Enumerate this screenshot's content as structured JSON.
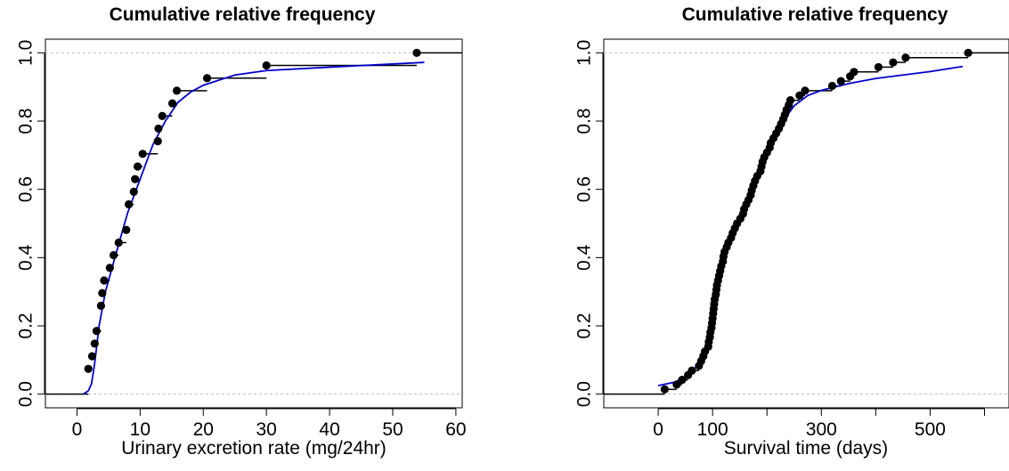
{
  "chart_data": [
    {
      "type": "line",
      "subtype": "empirical CDF (step) with fitted CDF overlay",
      "title": "Cumulative relative frequency",
      "xlabel": "Urinary excretion rate (mg/24hr)",
      "ylabel": "",
      "xlim": [
        -5,
        61
      ],
      "ylim": [
        -0.04,
        1.04
      ],
      "x_ticks": [
        0,
        10,
        20,
        30,
        40,
        50,
        60
      ],
      "y_ticks": [
        0.0,
        0.2,
        0.4,
        0.6,
        0.8,
        1.0
      ],
      "y_tick_labels": [
        "0.0",
        "0.2",
        "0.4",
        "0.6",
        "0.8",
        "1.0"
      ],
      "reference_lines": [
        0,
        1
      ],
      "empirical_points": [
        {
          "x": 1.8,
          "y": 0.074
        },
        {
          "x": 2.4,
          "y": 0.111
        },
        {
          "x": 2.8,
          "y": 0.148
        },
        {
          "x": 3.1,
          "y": 0.185
        },
        {
          "x": 3.8,
          "y": 0.259
        },
        {
          "x": 4.0,
          "y": 0.296
        },
        {
          "x": 4.3,
          "y": 0.333
        },
        {
          "x": 5.2,
          "y": 0.37
        },
        {
          "x": 5.8,
          "y": 0.407
        },
        {
          "x": 6.6,
          "y": 0.444
        },
        {
          "x": 7.8,
          "y": 0.481
        },
        {
          "x": 8.2,
          "y": 0.556
        },
        {
          "x": 9.0,
          "y": 0.593
        },
        {
          "x": 9.2,
          "y": 0.63
        },
        {
          "x": 9.6,
          "y": 0.667
        },
        {
          "x": 10.4,
          "y": 0.704
        },
        {
          "x": 12.8,
          "y": 0.741
        },
        {
          "x": 12.9,
          "y": 0.778
        },
        {
          "x": 13.5,
          "y": 0.815
        },
        {
          "x": 15.1,
          "y": 0.852
        },
        {
          "x": 15.8,
          "y": 0.889
        },
        {
          "x": 20.6,
          "y": 0.926
        },
        {
          "x": 30.0,
          "y": 0.963
        },
        {
          "x": 53.8,
          "y": 1.0
        }
      ],
      "fit_curve": {
        "color": "#0000cc",
        "points": [
          {
            "x": 1.0,
            "y": 0.0
          },
          {
            "x": 1.8,
            "y": 0.01
          },
          {
            "x": 2.3,
            "y": 0.03
          },
          {
            "x": 2.8,
            "y": 0.09
          },
          {
            "x": 3.5,
            "y": 0.2
          },
          {
            "x": 4.5,
            "y": 0.3
          },
          {
            "x": 6.0,
            "y": 0.4
          },
          {
            "x": 8.0,
            "y": 0.53
          },
          {
            "x": 10.0,
            "y": 0.63
          },
          {
            "x": 12.0,
            "y": 0.73
          },
          {
            "x": 14.0,
            "y": 0.8
          },
          {
            "x": 16.0,
            "y": 0.855
          },
          {
            "x": 18.0,
            "y": 0.885
          },
          {
            "x": 20.0,
            "y": 0.905
          },
          {
            "x": 25.0,
            "y": 0.935
          },
          {
            "x": 30.0,
            "y": 0.948
          },
          {
            "x": 40.0,
            "y": 0.958
          },
          {
            "x": 55.0,
            "y": 0.972
          }
        ]
      }
    },
    {
      "type": "line",
      "subtype": "empirical CDF (step) with fitted CDF overlay",
      "title": "Cumulative relative frequency",
      "xlabel": "Survival time (days)",
      "ylabel": "",
      "xlim": [
        -100,
        645
      ],
      "ylim": [
        -0.04,
        1.04
      ],
      "x_ticks": [
        0,
        100,
        200,
        300,
        400,
        500,
        600
      ],
      "x_tick_labels_shown": [
        0,
        100,
        300,
        500
      ],
      "y_ticks": [
        0.0,
        0.2,
        0.4,
        0.6,
        0.8,
        1.0
      ],
      "y_tick_labels": [
        "0.0",
        "0.2",
        "0.4",
        "0.6",
        "0.8",
        "1.0"
      ],
      "reference_lines": [
        0,
        1
      ],
      "empirical_points": [
        {
          "x": 12,
          "y": 0.014
        },
        {
          "x": 34,
          "y": 0.028
        },
        {
          "x": 44,
          "y": 0.042
        },
        {
          "x": 55,
          "y": 0.056
        },
        {
          "x": 62,
          "y": 0.069
        },
        {
          "x": 75,
          "y": 0.083
        },
        {
          "x": 79,
          "y": 0.097
        },
        {
          "x": 83,
          "y": 0.111
        },
        {
          "x": 86,
          "y": 0.125
        },
        {
          "x": 92,
          "y": 0.139
        },
        {
          "x": 93,
          "y": 0.153
        },
        {
          "x": 95,
          "y": 0.167
        },
        {
          "x": 96,
          "y": 0.181
        },
        {
          "x": 98,
          "y": 0.194
        },
        {
          "x": 99,
          "y": 0.208
        },
        {
          "x": 100,
          "y": 0.222
        },
        {
          "x": 101,
          "y": 0.236
        },
        {
          "x": 102,
          "y": 0.25
        },
        {
          "x": 103,
          "y": 0.264
        },
        {
          "x": 104,
          "y": 0.278
        },
        {
          "x": 106,
          "y": 0.292
        },
        {
          "x": 107,
          "y": 0.306
        },
        {
          "x": 108,
          "y": 0.319
        },
        {
          "x": 110,
          "y": 0.333
        },
        {
          "x": 112,
          "y": 0.347
        },
        {
          "x": 114,
          "y": 0.361
        },
        {
          "x": 116,
          "y": 0.375
        },
        {
          "x": 119,
          "y": 0.389
        },
        {
          "x": 120,
          "y": 0.403
        },
        {
          "x": 122,
          "y": 0.417
        },
        {
          "x": 126,
          "y": 0.431
        },
        {
          "x": 129,
          "y": 0.444
        },
        {
          "x": 134,
          "y": 0.458
        },
        {
          "x": 137,
          "y": 0.472
        },
        {
          "x": 141,
          "y": 0.486
        },
        {
          "x": 145,
          "y": 0.5
        },
        {
          "x": 151,
          "y": 0.514
        },
        {
          "x": 156,
          "y": 0.528
        },
        {
          "x": 158,
          "y": 0.542
        },
        {
          "x": 162,
          "y": 0.556
        },
        {
          "x": 166,
          "y": 0.569
        },
        {
          "x": 170,
          "y": 0.583
        },
        {
          "x": 172,
          "y": 0.597
        },
        {
          "x": 175,
          "y": 0.611
        },
        {
          "x": 178,
          "y": 0.625
        },
        {
          "x": 182,
          "y": 0.639
        },
        {
          "x": 188,
          "y": 0.653
        },
        {
          "x": 190,
          "y": 0.667
        },
        {
          "x": 192,
          "y": 0.681
        },
        {
          "x": 195,
          "y": 0.694
        },
        {
          "x": 200,
          "y": 0.708
        },
        {
          "x": 205,
          "y": 0.722
        },
        {
          "x": 207,
          "y": 0.736
        },
        {
          "x": 212,
          "y": 0.75
        },
        {
          "x": 217,
          "y": 0.764
        },
        {
          "x": 222,
          "y": 0.778
        },
        {
          "x": 226,
          "y": 0.792
        },
        {
          "x": 230,
          "y": 0.806
        },
        {
          "x": 233,
          "y": 0.819
        },
        {
          "x": 236,
          "y": 0.833
        },
        {
          "x": 240,
          "y": 0.847
        },
        {
          "x": 243,
          "y": 0.861
        },
        {
          "x": 260,
          "y": 0.875
        },
        {
          "x": 270,
          "y": 0.889
        },
        {
          "x": 320,
          "y": 0.903
        },
        {
          "x": 336,
          "y": 0.917
        },
        {
          "x": 353,
          "y": 0.931
        },
        {
          "x": 360,
          "y": 0.944
        },
        {
          "x": 405,
          "y": 0.958
        },
        {
          "x": 432,
          "y": 0.972
        },
        {
          "x": 455,
          "y": 0.986
        },
        {
          "x": 570,
          "y": 1.0
        }
      ],
      "fit_curve": {
        "color": "#0000cc",
        "points": [
          {
            "x": 0,
            "y": 0.025
          },
          {
            "x": 30,
            "y": 0.035
          },
          {
            "x": 50,
            "y": 0.05
          },
          {
            "x": 70,
            "y": 0.08
          },
          {
            "x": 85,
            "y": 0.12
          },
          {
            "x": 95,
            "y": 0.18
          },
          {
            "x": 100,
            "y": 0.24
          },
          {
            "x": 105,
            "y": 0.29
          },
          {
            "x": 115,
            "y": 0.37
          },
          {
            "x": 130,
            "y": 0.44
          },
          {
            "x": 150,
            "y": 0.52
          },
          {
            "x": 175,
            "y": 0.62
          },
          {
            "x": 200,
            "y": 0.71
          },
          {
            "x": 225,
            "y": 0.79
          },
          {
            "x": 250,
            "y": 0.845
          },
          {
            "x": 275,
            "y": 0.875
          },
          {
            "x": 300,
            "y": 0.89
          },
          {
            "x": 350,
            "y": 0.91
          },
          {
            "x": 400,
            "y": 0.925
          },
          {
            "x": 450,
            "y": 0.935
          },
          {
            "x": 500,
            "y": 0.945
          },
          {
            "x": 560,
            "y": 0.96
          }
        ]
      }
    }
  ]
}
